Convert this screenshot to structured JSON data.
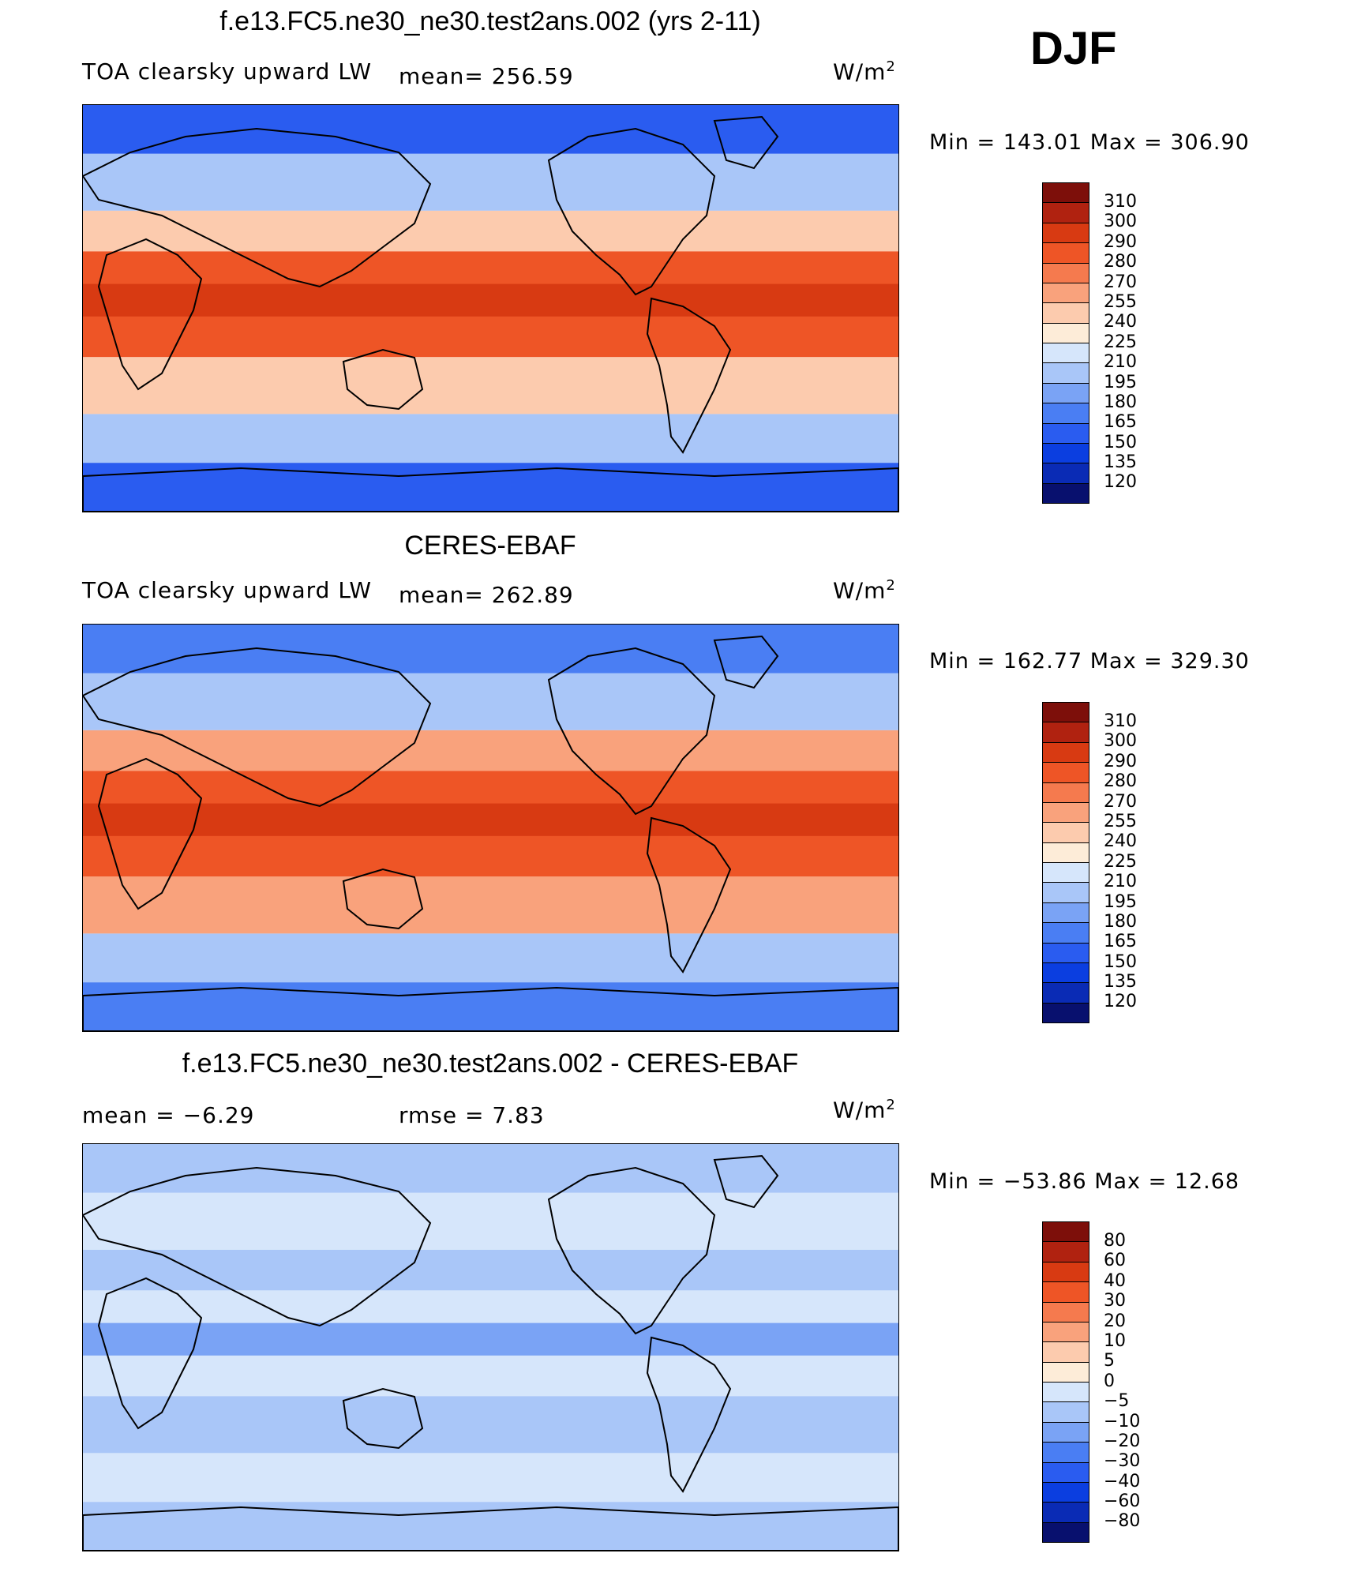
{
  "season": "DJF",
  "panels": [
    {
      "title": "f.e13.FC5.ne30_ne30.test2ans.002 (yrs 2-11)",
      "left_label": "TOA clearsky upward LW",
      "center_label": "mean=  256.59",
      "units": "W/m",
      "units_sup": "2",
      "min_max": "Min  =  143.01  Max  =  306.90",
      "colorbar": {
        "labels": [
          "310",
          "300",
          "290",
          "280",
          "270",
          "255",
          "240",
          "225",
          "210",
          "195",
          "180",
          "165",
          "150",
          "135",
          "120"
        ],
        "colors": [
          "#08106e",
          "#0a2bb5",
          "#0b3ee0",
          "#2a5cf0",
          "#4a7ef3",
          "#7aa3f5",
          "#a9c6f8",
          "#d6e6fb",
          "#fdecd8",
          "#fccbae",
          "#f9a27c",
          "#f57a4e",
          "#ee5526",
          "#d83a12",
          "#b02210",
          "#7d0f0a"
        ]
      },
      "map": {
        "type": "heatmap",
        "description_colors": {
          "polar": "#2a5cf0",
          "midlat": "#a9c6f8",
          "subtropic": "#fccbae",
          "tropic": "#ee5526",
          "hot": "#d83a12"
        }
      }
    },
    {
      "title": "CERES-EBAF",
      "left_label": "TOA clearsky upward LW",
      "center_label": "mean=  262.89",
      "units": "W/m",
      "units_sup": "2",
      "min_max": "Min  =  162.77  Max  =  329.30",
      "colorbar": {
        "labels": [
          "310",
          "300",
          "290",
          "280",
          "270",
          "255",
          "240",
          "225",
          "210",
          "195",
          "180",
          "165",
          "150",
          "135",
          "120"
        ],
        "colors": [
          "#08106e",
          "#0a2bb5",
          "#0b3ee0",
          "#2a5cf0",
          "#4a7ef3",
          "#7aa3f5",
          "#a9c6f8",
          "#d6e6fb",
          "#fdecd8",
          "#fccbae",
          "#f9a27c",
          "#f57a4e",
          "#ee5526",
          "#d83a12",
          "#b02210",
          "#7d0f0a"
        ]
      },
      "map": {
        "type": "heatmap",
        "description_colors": {
          "polar": "#4a7ef3",
          "midlat": "#a9c6f8",
          "subtropic": "#f9a27c",
          "tropic": "#ee5526",
          "hot": "#d83a12"
        }
      }
    },
    {
      "title": "f.e13.FC5.ne30_ne30.test2ans.002 - CERES-EBAF",
      "left_label": "mean  =    −6.29",
      "center_label": "rmse  =     7.83",
      "units": "W/m",
      "units_sup": "2",
      "min_max": "Min  =  −53.86  Max  =    12.68",
      "colorbar": {
        "labels": [
          "80",
          "60",
          "40",
          "30",
          "20",
          "10",
          "5",
          "0",
          "−5",
          "−10",
          "−20",
          "−30",
          "−40",
          "−60",
          "−80"
        ],
        "colors": [
          "#08106e",
          "#0a2bb5",
          "#0b3ee0",
          "#2a5cf0",
          "#4a7ef3",
          "#7aa3f5",
          "#a9c6f8",
          "#d6e6fb",
          "#fdecd8",
          "#fccbae",
          "#f9a27c",
          "#f57a4e",
          "#ee5526",
          "#d83a12",
          "#b02210",
          "#7d0f0a"
        ]
      },
      "map": {
        "type": "heatmap",
        "description_colors": {
          "polar": "#a9c6f8",
          "midlat": "#d6e6fb",
          "subtropic": "#a9c6f8",
          "tropic": "#d6e6fb",
          "hot": "#7aa3f5"
        }
      }
    }
  ]
}
